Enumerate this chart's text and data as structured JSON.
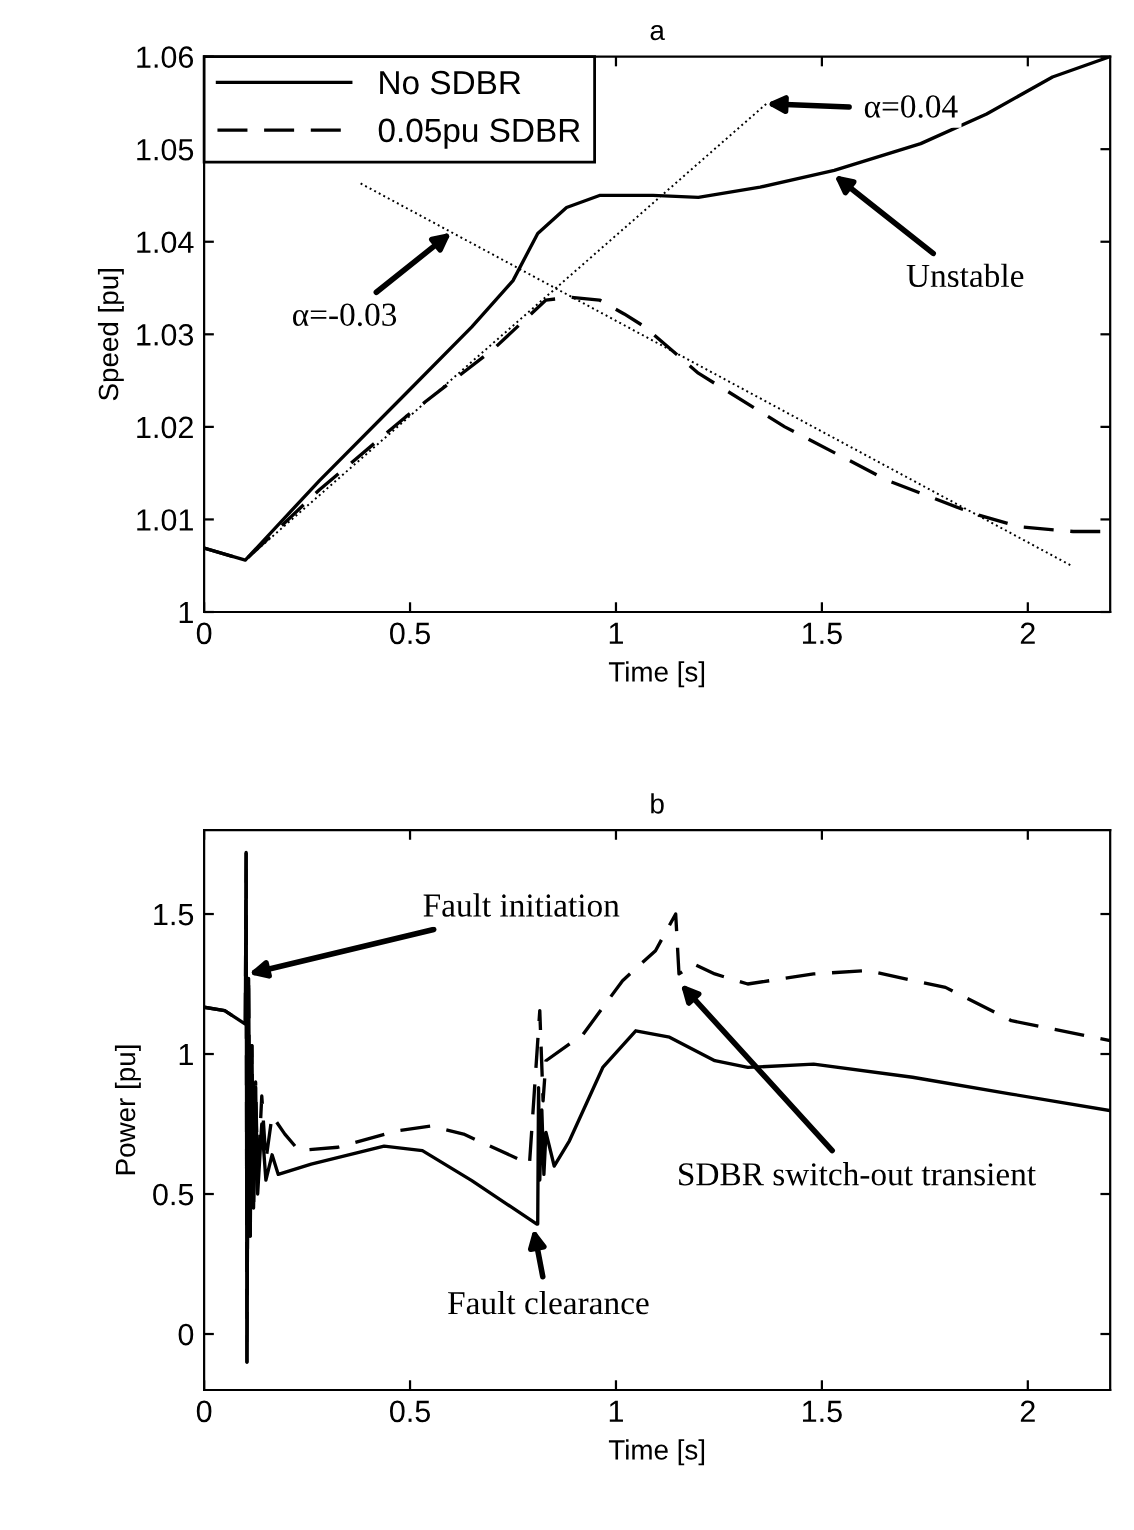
{
  "chart_data": [
    {
      "type": "line",
      "title": "a",
      "xlabel": "Time [s]",
      "ylabel": "Speed [pu]",
      "xlim": [
        0,
        2.2
      ],
      "ylim": [
        1,
        1.06
      ],
      "xticks": [
        0,
        0.5,
        1,
        1.5,
        2
      ],
      "yticks": [
        1,
        1.01,
        1.02,
        1.03,
        1.04,
        1.05,
        1.06
      ],
      "grid": false,
      "legend": "top left",
      "marker": "none",
      "series": [
        {
          "name": "No SDBR",
          "color": "#000000",
          "line_style": "solid",
          "x": [
            0,
            0.1,
            0.28,
            0.49,
            0.65,
            0.75,
            0.81,
            0.88,
            0.96,
            1.09,
            1.2,
            1.35,
            1.53,
            1.74,
            1.9,
            2.06,
            2.2
          ],
          "values": [
            1.0069,
            1.0056,
            1.0142,
            1.0236,
            1.0308,
            1.0358,
            1.0409,
            1.0437,
            1.045,
            1.045,
            1.0448,
            1.0459,
            1.0477,
            1.0506,
            1.0538,
            1.0578,
            1.06
          ]
        },
        {
          "name": "0.05pu SDBR",
          "color": "#000000",
          "line_style": "dashed",
          "x": [
            0,
            0.1,
            0.28,
            0.49,
            0.7,
            0.83,
            0.89,
            0.96,
            1.02,
            1.07,
            1.2,
            1.41,
            1.66,
            1.87,
            1.98,
            2.11,
            2.2
          ],
          "values": [
            1.0069,
            1.0056,
            1.0132,
            1.0211,
            1.0283,
            1.0337,
            1.034,
            1.0337,
            1.0322,
            1.0308,
            1.0258,
            1.02,
            1.0142,
            1.0106,
            1.0092,
            1.0087,
            1.0087
          ]
        },
        {
          "color": "#000000",
          "line_style": "dotted",
          "x": [
            0.1,
            1.365
          ],
          "values": [
            1.0056,
            1.0549
          ]
        },
        {
          "color": "#000000",
          "line_style": "dotted",
          "x": [
            0.38,
            2.11
          ],
          "values": [
            1.0463,
            1.0049
          ]
        }
      ],
      "annotations": [
        {
          "text": "α=0.04",
          "x": 1.365,
          "y": 1.0549
        },
        {
          "text": "α=-0.03",
          "x": 0.6,
          "y": 1.041
        },
        {
          "text": "Unstable",
          "x": 1.53,
          "y": 1.0472
        }
      ]
    },
    {
      "type": "line",
      "title": "b",
      "xlabel": "Time [s]",
      "ylabel": "Power [pu]",
      "xlim": [
        0,
        2.2
      ],
      "ylim": [
        -0.2,
        1.8
      ],
      "xticks": [
        0,
        0.5,
        1,
        1.5,
        2
      ],
      "yticks": [
        0,
        0.5,
        1,
        1.5
      ],
      "grid": false,
      "legend": false,
      "marker": "none",
      "series": [
        {
          "color": "#000000",
          "line_style": "solid",
          "x": [
            0,
            0.05,
            0.1,
            0.102,
            0.104,
            0.108,
            0.112,
            0.116,
            0.12,
            0.125,
            0.13,
            0.14,
            0.15,
            0.165,
            0.18,
            0.26,
            0.437,
            0.53,
            0.65,
            0.807,
            0.81,
            0.812,
            0.815,
            0.82,
            0.825,
            0.83,
            0.85,
            0.887,
            0.968,
            1.048,
            1.13,
            1.24,
            1.32,
            1.48,
            1.72,
            1.96,
            2.2
          ],
          "values": [
            1.167,
            1.155,
            1.107,
            1.72,
            -0.1,
            1.27,
            0.35,
            1.03,
            0.45,
            0.88,
            0.5,
            0.75,
            0.55,
            0.64,
            0.57,
            0.607,
            0.671,
            0.655,
            0.548,
            0.393,
            0.393,
            0.88,
            0.55,
            0.8,
            0.57,
            0.72,
            0.6,
            0.69,
            0.952,
            1.083,
            1.06,
            0.976,
            0.952,
            0.964,
            0.917,
            0.857,
            0.798
          ]
        },
        {
          "color": "#000000",
          "line_style": "dashed",
          "x": [
            0,
            0.05,
            0.1,
            0.102,
            0.104,
            0.108,
            0.112,
            0.116,
            0.12,
            0.125,
            0.13,
            0.14,
            0.15,
            0.165,
            0.196,
            0.23,
            0.325,
            0.47,
            0.55,
            0.63,
            0.79,
            0.815,
            0.823,
            0.83,
            0.92,
            1.016,
            1.096,
            1.145,
            1.153,
            1.19,
            1.24,
            1.32,
            1.48,
            1.61,
            1.8,
            1.96,
            2.2
          ],
          "values": [
            1.167,
            1.155,
            1.107,
            1.72,
            -0.1,
            1.27,
            0.35,
            1.03,
            0.45,
            0.9,
            0.55,
            0.85,
            0.62,
            0.78,
            0.714,
            0.655,
            0.667,
            0.726,
            0.743,
            0.714,
            0.607,
            1.155,
            0.833,
            0.976,
            1.07,
            1.262,
            1.369,
            1.5,
            1.286,
            1.321,
            1.286,
            1.25,
            1.286,
            1.298,
            1.238,
            1.119,
            1.048
          ]
        }
      ],
      "annotations": [
        {
          "text": "Fault initiation",
          "x": 0.108,
          "y": 1.286
        },
        {
          "text": "Fault clearance",
          "x": 0.8,
          "y": 0.376
        },
        {
          "text": "SDBR switch-out transient",
          "x": 1.157,
          "y": 1.25
        }
      ]
    }
  ]
}
